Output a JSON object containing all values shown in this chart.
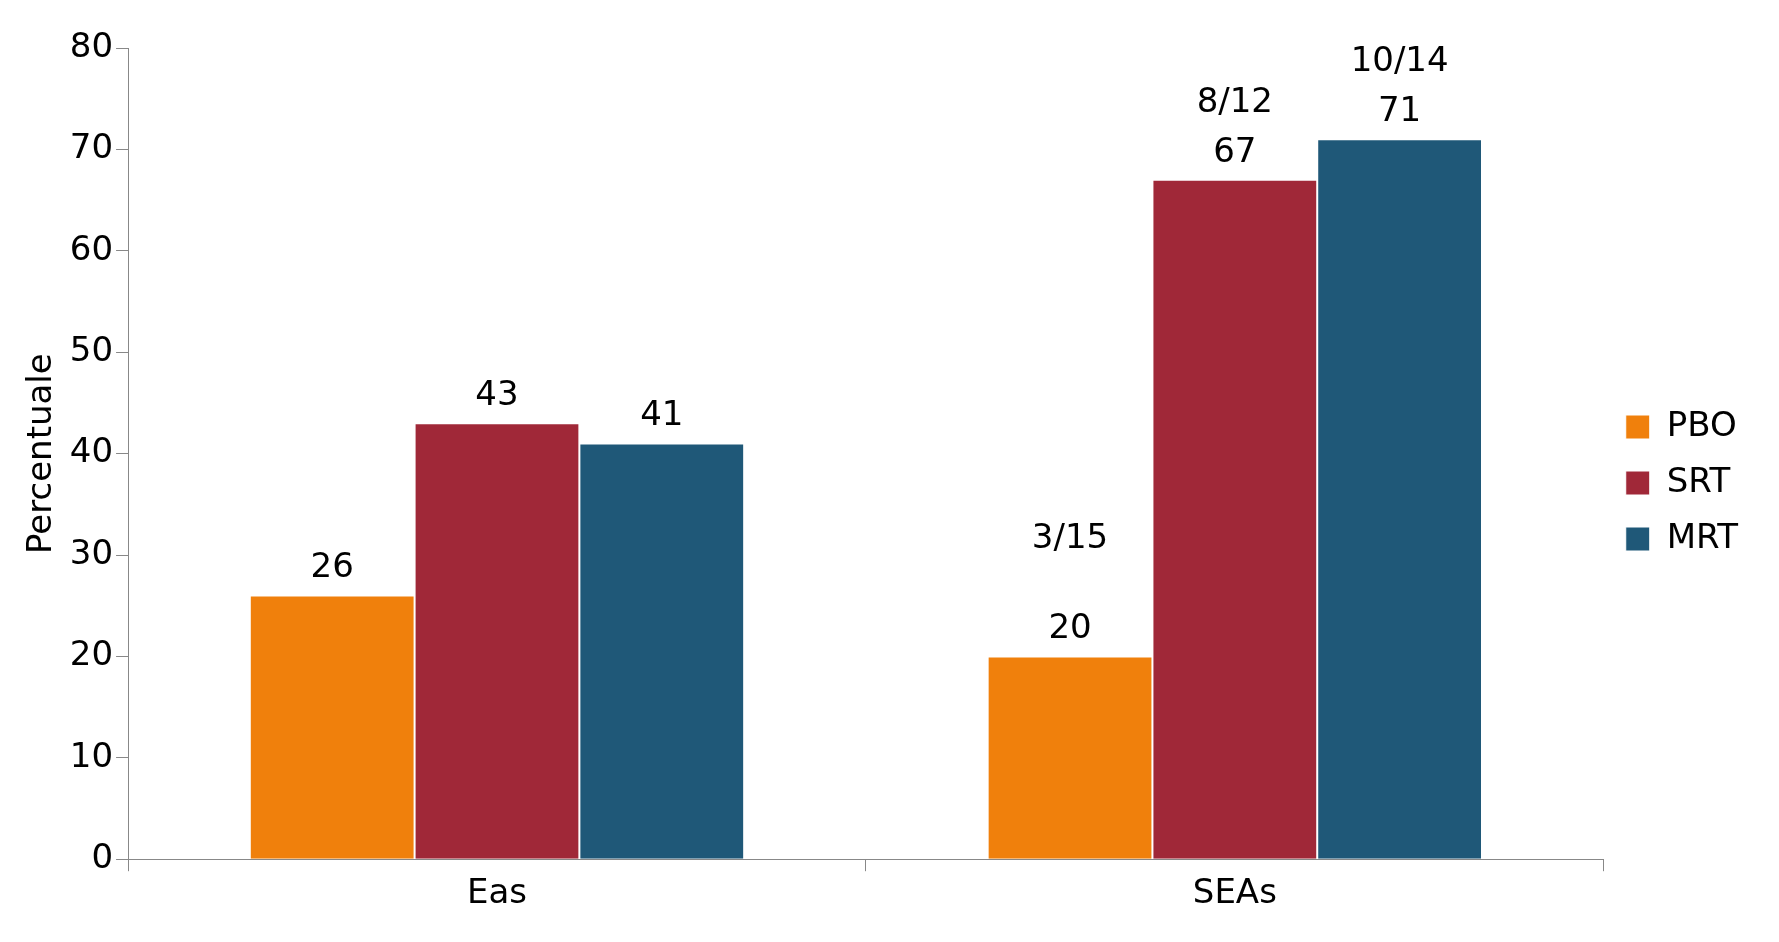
{
  "chart_data": {
    "type": "bar",
    "ylabel": "Percentuale",
    "categories": [
      "Eas",
      "SEAs"
    ],
    "series": [
      {
        "name": "PBO",
        "color": "#f0800c",
        "values": [
          26,
          20
        ]
      },
      {
        "name": "SRT",
        "color": "#a02838",
        "values": [
          43,
          67
        ]
      },
      {
        "name": "MRT",
        "color": "#1f5878",
        "values": [
          41,
          71
        ]
      }
    ],
    "ylim": [
      0,
      80
    ],
    "yticks": [
      0,
      10,
      20,
      30,
      40,
      50,
      60,
      70,
      80
    ],
    "grid": false,
    "legend": "right",
    "data_labels": true,
    "annotations": [
      "3/15",
      "8/12",
      "10/14"
    ]
  }
}
